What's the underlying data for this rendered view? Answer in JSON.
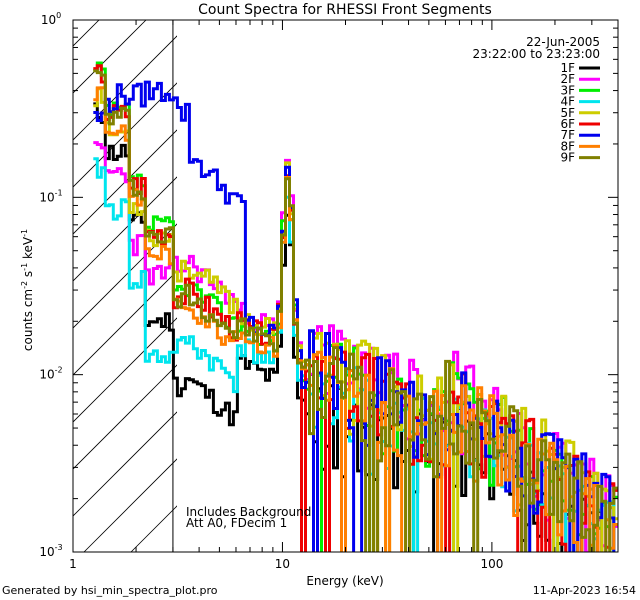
{
  "chart_data": {
    "type": "line",
    "title": "Count Spectra for RHESSI Front Segments",
    "xlabel": "Energy (keV)",
    "ylabel_parts": {
      "base": "counts cm",
      "exp1": "-2",
      "mid": " s",
      "exp2": "-1",
      "unit": " keV",
      "exp3": "-1"
    },
    "xscale": "log",
    "yscale": "log",
    "xlim": [
      1,
      400
    ],
    "ylim": [
      0.001,
      1
    ],
    "x_ticks": [
      {
        "value": 1,
        "label": "1"
      },
      {
        "value": 10,
        "label": "10"
      },
      {
        "value": 100,
        "label": "100"
      }
    ],
    "y_ticks": [
      {
        "value": 1,
        "base": "10",
        "exp": "0"
      },
      {
        "value": 0.1,
        "base": "10",
        "exp": "-1"
      },
      {
        "value": 0.01,
        "base": "10",
        "exp": "-2"
      },
      {
        "value": 0.001,
        "base": "10",
        "exp": "-3"
      }
    ],
    "date": "22-Jun-2005",
    "time_range": "23:22:00 to 23:23:00",
    "annotations": [
      "Includes Background",
      "Att A0, FDecim 1"
    ],
    "attenuator_region": {
      "xmin": 1,
      "xmax": 3
    },
    "legend_position": "top-right",
    "series": [
      {
        "name": "1F",
        "color": "#000000",
        "offset": 0.6,
        "seed": 11,
        "lowmax": 9.0,
        "dip": 0.42
      },
      {
        "name": "2F",
        "color": "#ff00ff",
        "offset": 1.15,
        "seed": 23,
        "lowmax": 0.4,
        "dip": 1.0
      },
      {
        "name": "3F",
        "color": "#00ee00",
        "offset": 1.0,
        "seed": 37,
        "lowmax": 1.5,
        "dip": 0.85
      },
      {
        "name": "4F",
        "color": "#00e5ee",
        "offset": 0.75,
        "seed": 41,
        "lowmax": 0.55,
        "dip": 0.55
      },
      {
        "name": "5F",
        "color": "#cdcd00",
        "offset": 1.1,
        "seed": 53,
        "lowmax": 0.7,
        "dip": 1.0
      },
      {
        "name": "6F",
        "color": "#ee0000",
        "offset": 1.0,
        "seed": 67,
        "lowmax": 1.2,
        "dip": 0.8
      },
      {
        "name": "7F",
        "color": "#0000ee",
        "offset": 1.05,
        "seed": 79,
        "lowmax": 0.28,
        "dip": 1.0
      },
      {
        "name": "8F",
        "color": "#ff7f00",
        "offset": 0.9,
        "seed": 83,
        "lowmax": 0.9,
        "dip": 0.75
      },
      {
        "name": "9F",
        "color": "#808000",
        "offset": 0.95,
        "seed": 97,
        "lowmax": 1.0,
        "dip": 0.8
      }
    ]
  },
  "footer": {
    "left": "Generated by hsi_min_spectra_plot.pro",
    "right": "11-Apr-2023 16:54"
  }
}
